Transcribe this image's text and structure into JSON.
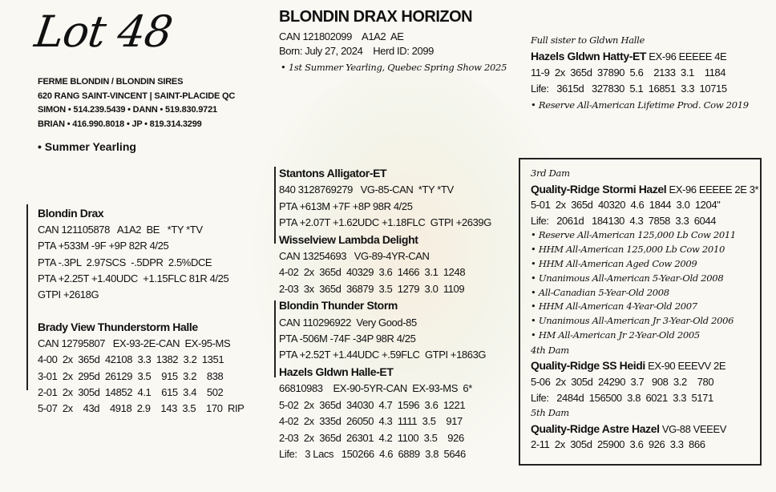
{
  "lot_label": "Lot 48",
  "consignor": {
    "lines": [
      "FERME BLONDIN / BLONDIN SIRES",
      "620 RANG SAINT-VINCENT | SAINT-PLACIDE QC",
      "SIMON • 514.239.5439  •  DANN • 519.830.9721",
      "BRIAN • 416.990.8018  •  JP • 819.314.3299"
    ]
  },
  "class_label": "• Summer Yearling",
  "animal": {
    "name": "BLONDIN DRAX HORIZON",
    "lines": [
      "CAN 121802099    A1A2  AE",
      "Born: July 27, 2024    Herd ID: 2099"
    ],
    "award": "• 1st Summer Yearling, Quebec Spring Show 2025"
  },
  "sister": {
    "note": "Full sister to Gldwn Halle",
    "name": "Hazels Gldwn Hatty-ET",
    "suffix": " EX-96 EEEEE 4E",
    "lines": [
      "11-9  2x  365d  37890  5.6    2133  3.1    1184",
      "Life:   3615d   327830  5.1  16851  3.3  10715"
    ],
    "award": "• Reserve All-American Lifetime Prod. Cow 2019"
  },
  "sire": {
    "name": "Blondin Drax",
    "lines": [
      "CAN 121105878   A1A2  BE   *TY *TV",
      "PTA +533M -9F +9P 82R 4/25",
      "PTA -.3PL  2.97SCS  -.5DPR  2.5%DCE",
      "PTA +2.25T +1.40UDC  +1.15FLC 81R 4/25",
      "GTPI +2618G"
    ]
  },
  "dam": {
    "name": "Brady View Thunderstorm Halle",
    "lines": [
      "CAN 12795807   EX-93-2E-CAN  EX-95-MS",
      "4-00  2x  365d  42108  3.3  1382  3.2  1351",
      "3-01  2x  295d  26129  3.5    915  3.2    838",
      "2-01  2x  305d  14852  4.1    615  3.4    502",
      "5-07  2x    43d    4918  2.9    143  3.5    170  RIP"
    ]
  },
  "pedigree_center": [
    {
      "name": "Stantons Alligator-ET",
      "lines": [
        "840 3128769279   VG-85-CAN  *TY *TV",
        "PTA +613M +7F +8P 98R 4/25",
        "PTA +2.07T +1.62UDC +1.18FLC  GTPI +2639G"
      ]
    },
    {
      "name": "Wisselview Lambda Delight",
      "lines": [
        "CAN 13254693   VG-89-4YR-CAN",
        "4-02  2x  365d  40329  3.6  1466  3.1  1248",
        "2-03  3x  365d  36879  3.5  1279  3.0  1109"
      ]
    },
    {
      "name": "Blondin Thunder Storm",
      "lines": [
        "CAN 110296922  Very Good-85",
        "PTA -506M -74F -34P 98R 4/25",
        "PTA +2.52T +1.44UDC +.59FLC  GTPI +1863G"
      ]
    },
    {
      "name": "Hazels Gldwn Halle-ET",
      "lines": [
        "66810983    EX-90-5YR-CAN  EX-93-MS  6*",
        "5-02  2x  365d  34030  4.7  1596  3.6  1221",
        "4-02  2x  335d  26050  4.3  1111  3.5    917",
        "2-03  2x  365d  26301  4.2  1100  3.5    926",
        "Life:   3 Lacs   150266  4.6  6889  3.8  5646"
      ]
    }
  ],
  "dams_box": [
    {
      "label": "3rd Dam",
      "name": "Quality-Ridge Stormi Hazel",
      "suffix": " EX-96 EEEEE 2E 3*",
      "lines": [
        "5-01  2x  365d  40320  4.6  1844  3.0  1204\"",
        "Life:   2061d   184130  4.3  7858  3.3  6044"
      ],
      "awards": [
        "• Reserve All-American 125,000 Lb Cow 2011",
        "• HHM All-American 125,000 Lb Cow 2010",
        "• HHM All-American Aged Cow 2009",
        "• Unanimous All-American 5-Year-Old 2008",
        "• All-Canadian 5-Year-Old 2008",
        "• HHM All-American 4-Year-Old 2007",
        "• Unanimous All-American Jr 3-Year-Old 2006",
        "• HM All-American Jr 2-Year-Old 2005"
      ]
    },
    {
      "label": "4th Dam",
      "name": "Quality-Ridge SS Heidi",
      "suffix": " EX-90 EEEVV 2E",
      "lines": [
        "5-06  2x  305d  24290  3.7   908  3.2    780",
        "Life:   2484d  156500  3.8  6021  3.3  5171"
      ],
      "awards": []
    },
    {
      "label": "5th Dam",
      "name": "Quality-Ridge Astre Hazel",
      "suffix": " VG-88 VEEEV",
      "lines": [
        "2-11  2x  305d  25900  3.6  926  3.3  866"
      ],
      "awards": []
    }
  ]
}
